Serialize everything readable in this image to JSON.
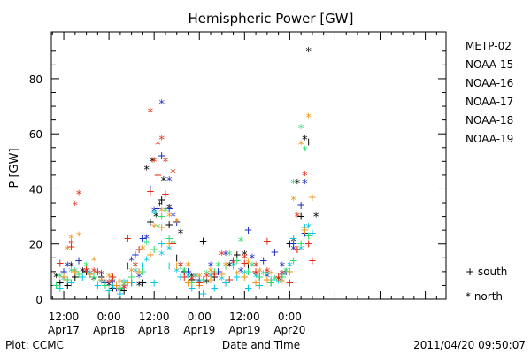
{
  "chart_data": {
    "type": "scatter",
    "title": "Hemispheric Power [GW]",
    "xlabel": "Date and Time",
    "ylabel": "P [GW]",
    "x_unit": "hours since 2011-04-17 00:00 UT",
    "xlim": [
      8.7,
      113.5
    ],
    "ylim": [
      0,
      97
    ],
    "grid": false,
    "yticks": [
      0,
      20,
      40,
      60,
      80
    ],
    "xticks": [
      {
        "x": 12,
        "line1": "12:00",
        "line2": "Apr17"
      },
      {
        "x": 24,
        "line1": "0:00",
        "line2": "Apr18"
      },
      {
        "x": 36,
        "line1": "12:00",
        "line2": "Apr18"
      },
      {
        "x": 48,
        "line1": "0:00",
        "line2": "Apr19"
      },
      {
        "x": 60,
        "line1": "12:00",
        "line2": "Apr19"
      },
      {
        "x": 72,
        "line1": "0:00",
        "line2": "Apr20"
      }
    ],
    "legend_position": "right",
    "markers_legend": [
      {
        "symbol": "+",
        "label": "south"
      },
      {
        "symbol": "*",
        "label": "north"
      }
    ],
    "series": [
      {
        "name": "METP-02",
        "color": "#000000",
        "south": [
          [
            11,
            6
          ],
          [
            13,
            5
          ],
          [
            15,
            8
          ],
          [
            18,
            10
          ],
          [
            22,
            8
          ],
          [
            25,
            4
          ],
          [
            28,
            3
          ],
          [
            30,
            6
          ],
          [
            33,
            6
          ],
          [
            35,
            28
          ],
          [
            38,
            36
          ],
          [
            40,
            27
          ],
          [
            42,
            15
          ],
          [
            44,
            10
          ],
          [
            46,
            7
          ],
          [
            49,
            21
          ],
          [
            52,
            8
          ],
          [
            55,
            6
          ],
          [
            58,
            16
          ],
          [
            61,
            12
          ],
          [
            64,
            8
          ],
          [
            67,
            6
          ],
          [
            70,
            8
          ],
          [
            72,
            20
          ],
          [
            75,
            30
          ],
          [
            77,
            57
          ]
        ],
        "north": [
          [
            10,
            8
          ],
          [
            14,
            12
          ],
          [
            17,
            10
          ],
          [
            20,
            7
          ],
          [
            24,
            5
          ],
          [
            27,
            3
          ],
          [
            32,
            5
          ],
          [
            34,
            47
          ],
          [
            35.5,
            50
          ],
          [
            36.5,
            30
          ],
          [
            37.5,
            34
          ],
          [
            38.5,
            43
          ],
          [
            40,
            33
          ],
          [
            43,
            24
          ],
          [
            46,
            8
          ],
          [
            50,
            6
          ],
          [
            56,
            12
          ],
          [
            60,
            16
          ],
          [
            63,
            9
          ],
          [
            66,
            9
          ],
          [
            69,
            7
          ],
          [
            73,
            21
          ],
          [
            74,
            42
          ],
          [
            76,
            58
          ],
          [
            77,
            90
          ],
          [
            79,
            30
          ]
        ]
      },
      {
        "name": "NOAA-15",
        "color": "#1c2cc8",
        "south": [
          [
            12,
            10
          ],
          [
            16,
            14
          ],
          [
            19,
            9
          ],
          [
            23,
            6
          ],
          [
            26,
            4
          ],
          [
            29,
            12
          ],
          [
            31,
            16
          ],
          [
            33,
            22
          ],
          [
            35,
            40
          ],
          [
            37,
            33
          ],
          [
            38,
            52
          ],
          [
            40,
            33
          ],
          [
            42,
            28
          ],
          [
            45,
            10
          ],
          [
            48,
            7
          ],
          [
            53,
            10
          ],
          [
            57,
            14
          ],
          [
            61,
            25
          ],
          [
            65,
            14
          ],
          [
            68,
            17
          ],
          [
            71,
            10
          ],
          [
            73,
            20
          ],
          [
            75,
            34
          ],
          [
            76,
            24
          ]
        ],
        "north": [
          [
            13,
            12
          ],
          [
            18,
            10
          ],
          [
            22,
            9
          ],
          [
            25,
            6
          ],
          [
            28,
            4
          ],
          [
            30,
            14
          ],
          [
            32,
            8
          ],
          [
            34,
            22
          ],
          [
            36,
            32
          ],
          [
            38,
            71
          ],
          [
            40,
            43
          ],
          [
            41,
            30
          ],
          [
            43,
            12
          ],
          [
            47,
            8
          ],
          [
            51,
            12
          ],
          [
            55,
            16
          ],
          [
            59,
            10
          ],
          [
            62,
            15
          ],
          [
            66,
            8
          ],
          [
            70,
            12
          ],
          [
            73,
            18
          ],
          [
            76,
            42
          ]
        ]
      },
      {
        "name": "NOAA-16",
        "color": "#00c8e6",
        "south": [
          [
            11,
            4
          ],
          [
            14,
            6
          ],
          [
            17,
            8
          ],
          [
            21,
            5
          ],
          [
            24,
            3
          ],
          [
            27,
            2
          ],
          [
            30,
            6
          ],
          [
            33,
            12
          ],
          [
            36,
            6
          ],
          [
            38,
            20
          ],
          [
            40,
            12
          ],
          [
            43,
            8
          ],
          [
            46,
            4
          ],
          [
            49,
            2
          ],
          [
            52,
            4
          ],
          [
            55,
            6
          ],
          [
            58,
            8
          ],
          [
            61,
            4
          ],
          [
            64,
            5
          ],
          [
            67,
            7
          ],
          [
            70,
            9
          ],
          [
            73,
            22
          ],
          [
            76,
            26
          ],
          [
            78,
            24
          ]
        ],
        "north": [
          [
            12,
            7
          ],
          [
            15,
            10
          ],
          [
            19,
            9
          ],
          [
            22,
            6
          ],
          [
            25,
            4
          ],
          [
            28,
            6
          ],
          [
            31,
            10
          ],
          [
            34,
            14
          ],
          [
            36,
            31
          ],
          [
            38,
            16
          ],
          [
            40,
            18
          ],
          [
            42,
            10
          ],
          [
            45,
            8
          ],
          [
            48,
            6
          ],
          [
            51,
            8
          ],
          [
            54,
            7
          ],
          [
            57,
            12
          ],
          [
            60,
            9
          ],
          [
            63,
            8
          ],
          [
            66,
            9
          ],
          [
            69,
            6
          ],
          [
            72,
            12
          ],
          [
            75,
            18
          ],
          [
            77,
            26
          ]
        ]
      },
      {
        "name": "NOAA-17",
        "color": "#26e06e",
        "south": [
          [
            10,
            5
          ],
          [
            13,
            7
          ],
          [
            16,
            9
          ],
          [
            20,
            8
          ],
          [
            23,
            5
          ],
          [
            27,
            4
          ],
          [
            30,
            8
          ],
          [
            33,
            10
          ],
          [
            36,
            18
          ],
          [
            38,
            30
          ],
          [
            40,
            22
          ],
          [
            43,
            12
          ],
          [
            46,
            6
          ],
          [
            49,
            7
          ],
          [
            52,
            10
          ],
          [
            55,
            12
          ],
          [
            58,
            14
          ],
          [
            61,
            10
          ],
          [
            64,
            8
          ],
          [
            67,
            6
          ],
          [
            70,
            8
          ],
          [
            73,
            14
          ],
          [
            75,
            20
          ],
          [
            77,
            23
          ]
        ],
        "north": [
          [
            11,
            8
          ],
          [
            14,
            10
          ],
          [
            18,
            12
          ],
          [
            21,
            9
          ],
          [
            25,
            7
          ],
          [
            28,
            5
          ],
          [
            31,
            12
          ],
          [
            34,
            20
          ],
          [
            37,
            26
          ],
          [
            39,
            32
          ],
          [
            41,
            20
          ],
          [
            44,
            10
          ],
          [
            47,
            8
          ],
          [
            50,
            9
          ],
          [
            53,
            12
          ],
          [
            56,
            16
          ],
          [
            59,
            21
          ],
          [
            62,
            12
          ],
          [
            65,
            9
          ],
          [
            68,
            7
          ],
          [
            71,
            10
          ],
          [
            73,
            42
          ],
          [
            75,
            62
          ],
          [
            76,
            54
          ]
        ]
      },
      {
        "name": "NOAA-18",
        "color": "#f09614",
        "south": [
          [
            12,
            8
          ],
          [
            15,
            10
          ],
          [
            19,
            9
          ],
          [
            22,
            7
          ],
          [
            26,
            5
          ],
          [
            29,
            6
          ],
          [
            32,
            10
          ],
          [
            35,
            16
          ],
          [
            38,
            26
          ],
          [
            40,
            20
          ],
          [
            42,
            12
          ],
          [
            45,
            6
          ],
          [
            48,
            5
          ],
          [
            51,
            7
          ],
          [
            54,
            9
          ],
          [
            57,
            12
          ],
          [
            60,
            8
          ],
          [
            63,
            6
          ],
          [
            66,
            7
          ],
          [
            69,
            8
          ],
          [
            72,
            10
          ],
          [
            74,
            18
          ],
          [
            76,
            25
          ],
          [
            78,
            37
          ]
        ],
        "north": [
          [
            13,
            18
          ],
          [
            14,
            22
          ],
          [
            16,
            23
          ],
          [
            20,
            14
          ],
          [
            24,
            8
          ],
          [
            27,
            6
          ],
          [
            30,
            10
          ],
          [
            33,
            18
          ],
          [
            36,
            26
          ],
          [
            38,
            32
          ],
          [
            40,
            30
          ],
          [
            42,
            28
          ],
          [
            45,
            12
          ],
          [
            48,
            8
          ],
          [
            51,
            10
          ],
          [
            55,
            12
          ],
          [
            58,
            9
          ],
          [
            61,
            13
          ],
          [
            64,
            10
          ],
          [
            67,
            9
          ],
          [
            70,
            6
          ],
          [
            73,
            36
          ],
          [
            75,
            56
          ],
          [
            77,
            66
          ]
        ]
      },
      {
        "name": "NOAA-19",
        "color": "#e62a14",
        "south": [
          [
            11,
            13
          ],
          [
            14,
            19
          ],
          [
            18,
            11
          ],
          [
            21,
            10
          ],
          [
            25,
            8
          ],
          [
            29,
            22
          ],
          [
            32,
            18
          ],
          [
            35,
            39
          ],
          [
            37,
            45
          ],
          [
            39,
            38
          ],
          [
            41,
            20
          ],
          [
            44,
            8
          ],
          [
            48,
            6
          ],
          [
            52,
            9
          ],
          [
            56,
            7
          ],
          [
            60,
            13
          ],
          [
            63,
            10
          ],
          [
            66,
            21
          ],
          [
            69,
            8
          ],
          [
            72,
            6
          ],
          [
            74,
            18
          ],
          [
            77,
            20
          ],
          [
            78,
            14
          ]
        ],
        "north": [
          [
            14,
            20
          ],
          [
            15,
            34
          ],
          [
            16,
            38
          ],
          [
            20,
            10
          ],
          [
            24,
            6
          ],
          [
            28,
            4
          ],
          [
            31,
            12
          ],
          [
            35,
            68
          ],
          [
            36,
            50
          ],
          [
            37,
            56
          ],
          [
            38,
            58
          ],
          [
            39,
            50
          ],
          [
            41,
            46
          ],
          [
            43,
            12
          ],
          [
            46,
            7
          ],
          [
            50,
            8
          ],
          [
            54,
            16
          ],
          [
            57,
            13
          ],
          [
            60,
            15
          ],
          [
            63,
            12
          ],
          [
            66,
            10
          ],
          [
            70,
            9
          ],
          [
            74,
            30
          ],
          [
            76,
            45
          ]
        ]
      }
    ]
  },
  "footer": {
    "plot_credit": "Plot: CCMC",
    "date_label": "Date and Time",
    "timestamp": "2011/04/20 09:50:07"
  }
}
